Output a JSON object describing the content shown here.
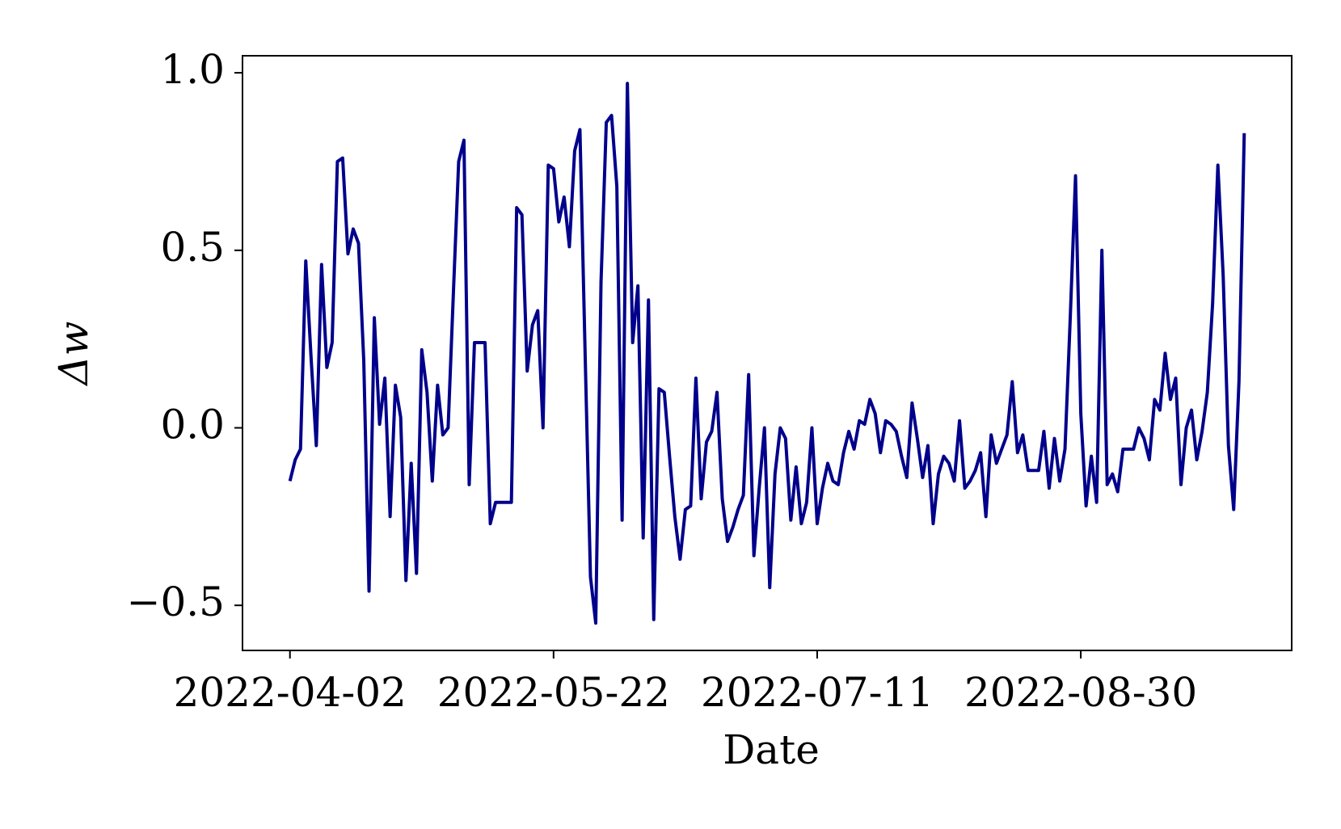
{
  "chart_data": {
    "type": "line",
    "xlabel": "Date",
    "ylabel": "Δw",
    "x": [
      "2022-04-02",
      "2022-04-03",
      "2022-04-04",
      "2022-04-05",
      "2022-04-06",
      "2022-04-07",
      "2022-04-08",
      "2022-04-09",
      "2022-04-10",
      "2022-04-11",
      "2022-04-12",
      "2022-04-13",
      "2022-04-14",
      "2022-04-15",
      "2022-04-16",
      "2022-04-17",
      "2022-04-18",
      "2022-04-19",
      "2022-04-20",
      "2022-04-21",
      "2022-04-22",
      "2022-04-23",
      "2022-04-24",
      "2022-04-25",
      "2022-04-26",
      "2022-04-27",
      "2022-04-28",
      "2022-04-29",
      "2022-04-30",
      "2022-05-01",
      "2022-05-02",
      "2022-05-03",
      "2022-05-04",
      "2022-05-05",
      "2022-05-06",
      "2022-05-07",
      "2022-05-08",
      "2022-05-09",
      "2022-05-10",
      "2022-05-11",
      "2022-05-12",
      "2022-05-13",
      "2022-05-14",
      "2022-05-15",
      "2022-05-16",
      "2022-05-17",
      "2022-05-18",
      "2022-05-19",
      "2022-05-20",
      "2022-05-21",
      "2022-05-22",
      "2022-05-23",
      "2022-05-24",
      "2022-05-25",
      "2022-05-26",
      "2022-05-27",
      "2022-05-28",
      "2022-05-29",
      "2022-05-30",
      "2022-05-31",
      "2022-06-01",
      "2022-06-02",
      "2022-06-03",
      "2022-06-04",
      "2022-06-05",
      "2022-06-06",
      "2022-06-07",
      "2022-06-08",
      "2022-06-09",
      "2022-06-10",
      "2022-06-11",
      "2022-06-12",
      "2022-06-13",
      "2022-06-14",
      "2022-06-15",
      "2022-06-16",
      "2022-06-17",
      "2022-06-18",
      "2022-06-19",
      "2022-06-20",
      "2022-06-21",
      "2022-06-22",
      "2022-06-23",
      "2022-06-24",
      "2022-06-25",
      "2022-06-26",
      "2022-06-27",
      "2022-06-28",
      "2022-06-29",
      "2022-06-30",
      "2022-07-01",
      "2022-07-02",
      "2022-07-03",
      "2022-07-04",
      "2022-07-05",
      "2022-07-06",
      "2022-07-07",
      "2022-07-08",
      "2022-07-09",
      "2022-07-10",
      "2022-07-11",
      "2022-07-12",
      "2022-07-13",
      "2022-07-14",
      "2022-07-15",
      "2022-07-16",
      "2022-07-17",
      "2022-07-18",
      "2022-07-19",
      "2022-07-20",
      "2022-07-21",
      "2022-07-22",
      "2022-07-23",
      "2022-07-24",
      "2022-07-25",
      "2022-07-26",
      "2022-07-27",
      "2022-07-28",
      "2022-07-29",
      "2022-07-30",
      "2022-07-31",
      "2022-08-01",
      "2022-08-02",
      "2022-08-03",
      "2022-08-04",
      "2022-08-05",
      "2022-08-06",
      "2022-08-07",
      "2022-08-08",
      "2022-08-09",
      "2022-08-10",
      "2022-08-11",
      "2022-08-12",
      "2022-08-13",
      "2022-08-14",
      "2022-08-15",
      "2022-08-16",
      "2022-08-17",
      "2022-08-18",
      "2022-08-19",
      "2022-08-20",
      "2022-08-21",
      "2022-08-22",
      "2022-08-23",
      "2022-08-24",
      "2022-08-25",
      "2022-08-26",
      "2022-08-27",
      "2022-08-28",
      "2022-08-29",
      "2022-08-30",
      "2022-08-31",
      "2022-09-01",
      "2022-09-02",
      "2022-09-03",
      "2022-09-04",
      "2022-09-05",
      "2022-09-06",
      "2022-09-07",
      "2022-09-08",
      "2022-09-09",
      "2022-09-10",
      "2022-09-11",
      "2022-09-12",
      "2022-09-13",
      "2022-09-14",
      "2022-09-15",
      "2022-09-16",
      "2022-09-17",
      "2022-09-18",
      "2022-09-19",
      "2022-09-20",
      "2022-09-21",
      "2022-09-22",
      "2022-09-23",
      "2022-09-24",
      "2022-09-25",
      "2022-09-26",
      "2022-09-27",
      "2022-09-28",
      "2022-09-29",
      "2022-09-30"
    ],
    "series": [
      {
        "color": "#00008b",
        "values": [
          -0.15,
          -0.09,
          -0.06,
          0.47,
          0.2,
          -0.05,
          0.46,
          0.17,
          0.24,
          0.75,
          0.76,
          0.49,
          0.56,
          0.52,
          0.19,
          -0.46,
          0.31,
          0.01,
          0.14,
          -0.25,
          0.12,
          0.03,
          -0.43,
          -0.1,
          -0.41,
          0.22,
          0.1,
          -0.15,
          0.12,
          -0.02,
          0.0,
          0.38,
          0.75,
          0.81,
          -0.16,
          0.24,
          0.24,
          0.24,
          -0.27,
          -0.21,
          -0.21,
          -0.21,
          -0.21,
          0.62,
          0.6,
          0.16,
          0.29,
          0.33,
          0.0,
          0.74,
          0.73,
          0.58,
          0.65,
          0.51,
          0.78,
          0.84,
          0.2,
          -0.42,
          -0.55,
          0.41,
          0.86,
          0.88,
          0.68,
          -0.26,
          0.97,
          0.24,
          0.4,
          -0.31,
          0.36,
          -0.54,
          0.11,
          0.1,
          -0.08,
          -0.25,
          -0.37,
          -0.23,
          -0.22,
          0.14,
          -0.2,
          -0.04,
          -0.01,
          0.1,
          -0.2,
          -0.32,
          -0.28,
          -0.23,
          -0.19,
          0.15,
          -0.36,
          -0.17,
          0.0,
          -0.45,
          -0.13,
          0.0,
          -0.03,
          -0.26,
          -0.11,
          -0.27,
          -0.21,
          0.0,
          -0.27,
          -0.17,
          -0.1,
          -0.15,
          -0.16,
          -0.07,
          -0.01,
          -0.06,
          0.02,
          0.01,
          0.08,
          0.04,
          -0.07,
          0.02,
          0.01,
          -0.01,
          -0.08,
          -0.14,
          0.07,
          -0.03,
          -0.14,
          -0.05,
          -0.27,
          -0.13,
          -0.08,
          -0.1,
          -0.15,
          0.02,
          -0.17,
          -0.15,
          -0.12,
          -0.07,
          -0.25,
          -0.02,
          -0.1,
          -0.06,
          -0.02,
          0.13,
          -0.07,
          -0.02,
          -0.12,
          -0.12,
          -0.12,
          -0.01,
          -0.17,
          -0.03,
          -0.15,
          -0.06,
          0.31,
          0.71,
          0.04,
          -0.22,
          -0.08,
          -0.21,
          0.5,
          -0.16,
          -0.13,
          -0.18,
          -0.06,
          -0.06,
          -0.06,
          0.0,
          -0.03,
          -0.09,
          0.08,
          0.05,
          0.21,
          0.08,
          0.14,
          -0.16,
          0.0,
          0.05,
          -0.09,
          -0.01,
          0.1,
          0.35,
          0.74,
          0.43,
          -0.05,
          -0.23,
          0.13,
          0.83
        ]
      }
    ],
    "xlim": [
      "2022-03-24",
      "2022-10-09"
    ],
    "xticks": [
      "2022-04-02",
      "2022-05-22",
      "2022-07-11",
      "2022-08-30"
    ],
    "ylim": [
      -0.627,
      1.048
    ],
    "yticks": [
      {
        "value": -0.5,
        "label": "−0.5"
      },
      {
        "value": 0,
        "label": "0.0"
      },
      0.5,
      {
        "value": 1,
        "label": "1.0"
      }
    ]
  }
}
